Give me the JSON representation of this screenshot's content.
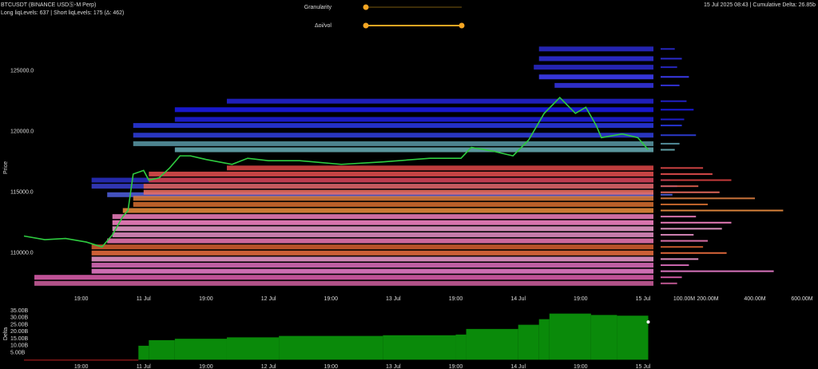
{
  "header": {
    "title": "BTCUSDT (BINANCE USDⓈ-M Perp)",
    "subtitle": "Long liqLevels: 637 | Short liqLevels: 175 (Δ: 462)",
    "status": "15 Jul 2025 08:43 | Cumulative Delta: 26.85b"
  },
  "controls": [
    {
      "label": "Granularity"
    },
    {
      "label": "Δoi/vol"
    }
  ],
  "chart_data": [
    {
      "type": "line",
      "y_label": "Price",
      "color": "#2ecc40",
      "x": [
        1,
        5,
        9,
        13,
        16,
        18,
        20,
        21,
        22,
        24,
        25,
        27,
        29,
        31,
        33,
        36,
        41,
        44,
        48,
        54,
        62,
        70,
        79,
        85,
        87,
        91,
        95,
        98,
        101,
        104,
        107,
        109,
        111,
        112,
        116,
        119,
        121
      ],
      "values": [
        111400,
        111100,
        111200,
        110900,
        110500,
        111500,
        113000,
        113500,
        116500,
        116800,
        116000,
        116200,
        117000,
        118000,
        118000,
        117700,
        117300,
        117800,
        117600,
        117600,
        117300,
        117500,
        117800,
        117800,
        118700,
        118400,
        118000,
        119300,
        121500,
        122800,
        121500,
        122000,
        120500,
        119500,
        119800,
        119500,
        118500
      ],
      "xlim": [
        1,
        122
      ],
      "xticks": [
        {
          "value": 12,
          "label": "19:00"
        },
        {
          "value": 24,
          "label": "11 Jul"
        },
        {
          "value": 36,
          "label": "19:00"
        },
        {
          "value": 48,
          "label": "12 Jul"
        },
        {
          "value": 60,
          "label": "19:00"
        },
        {
          "value": 72,
          "label": "13 Jul"
        },
        {
          "value": 84,
          "label": "19:00"
        },
        {
          "value": 96,
          "label": "14 Jul"
        },
        {
          "value": 108,
          "label": "19:00"
        },
        {
          "value": 120,
          "label": "15 Jul"
        }
      ],
      "ylim": [
        106500,
        128200
      ],
      "yticks": [
        {
          "value": 110000,
          "label": "110000.0"
        },
        {
          "value": 115000,
          "label": "115000.0"
        },
        {
          "value": 120000,
          "label": "120000.0"
        },
        {
          "value": 125000,
          "label": "125000.0"
        }
      ],
      "liq_levels": {
        "price": [
          126800,
          126000,
          125300,
          124500,
          123800,
          122500,
          121800,
          121000,
          120500,
          119700,
          119000,
          118500,
          116000,
          115500,
          114800,
          117000,
          116500,
          116000,
          115500,
          115000,
          114500,
          114000,
          113500,
          113000,
          112500,
          112000,
          111500,
          111000,
          110500,
          110000,
          109500,
          109000,
          108500,
          108000,
          107500
        ],
        "start": [
          100,
          100,
          99,
          100,
          103,
          40,
          30,
          30,
          22,
          22,
          22,
          30,
          14,
          14,
          17,
          40,
          25,
          25,
          24,
          24,
          22,
          22,
          20,
          18,
          18,
          18,
          18,
          17,
          14,
          14,
          14,
          14,
          14,
          3,
          3
        ],
        "color": [
          "#2a2ad0",
          "#3030e0",
          "#2a2ad0",
          "#4040ff",
          "#3535e8",
          "#2525d8",
          "#1c1cf0",
          "#2020e0",
          "#2a3ae8",
          "#3040e0",
          "#5a9aa8",
          "#6ab0b8",
          "#2a30c8",
          "#3a40d0",
          "#5060e0",
          "#e04848",
          "#e85050",
          "#d84040",
          "#e06050",
          "#f07060",
          "#e08040",
          "#d87030",
          "#f09040",
          "#f080c0",
          "#ff88cc",
          "#f0a0d0",
          "#e890c8",
          "#f07ab8",
          "#d86030",
          "#f07040",
          "#f09ad0",
          "#e070c0",
          "#f080d0",
          "#e060b0",
          "#d060a0"
        ]
      }
    },
    {
      "type": "hbar",
      "values": [
        60,
        90,
        70,
        120,
        80,
        110,
        140,
        100,
        90,
        150,
        80,
        60,
        40,
        70,
        50,
        180,
        220,
        300,
        160,
        250,
        400,
        200,
        520,
        150,
        300,
        260,
        140,
        200,
        180,
        280,
        160,
        120,
        480,
        90,
        70
      ],
      "xlim": [
        0,
        661
      ],
      "xticks": [
        {
          "value": 100,
          "label": "100.00M"
        },
        {
          "value": 200,
          "label": "200.00M"
        },
        {
          "value": 400,
          "label": "400.00M"
        },
        {
          "value": 600,
          "label": "600.00M"
        }
      ]
    },
    {
      "type": "step-area",
      "y_label": "Delta",
      "positive_color": "#0a8a0a",
      "negative_color": "#c02020",
      "x": [
        1,
        22,
        23,
        25,
        30,
        40,
        50,
        70,
        84,
        86,
        96,
        100,
        102,
        110,
        115,
        121
      ],
      "values": [
        -0.5,
        -0.5,
        10,
        14,
        15,
        16,
        17,
        17.5,
        18,
        22,
        25,
        29,
        33,
        32,
        31.5,
        27
      ],
      "xlim": [
        1,
        122
      ],
      "xticks": [
        {
          "value": 12,
          "label": "19:00"
        },
        {
          "value": 24,
          "label": "11 Jul"
        },
        {
          "value": 36,
          "label": "19:00"
        },
        {
          "value": 48,
          "label": "12 Jul"
        },
        {
          "value": 60,
          "label": "19:00"
        },
        {
          "value": 72,
          "label": "13 Jul"
        },
        {
          "value": 84,
          "label": "19:00"
        },
        {
          "value": 96,
          "label": "14 Jul"
        },
        {
          "value": 108,
          "label": "19:00"
        },
        {
          "value": 120,
          "label": "15 Jul"
        }
      ],
      "ylim": [
        -1.5,
        38.5
      ],
      "yticks": [
        {
          "value": 5,
          "label": "5.00B"
        },
        {
          "value": 10,
          "label": "10.00B"
        },
        {
          "value": 15,
          "label": "15.00B"
        },
        {
          "value": 20,
          "label": "20.00B"
        },
        {
          "value": 25,
          "label": "25.00B"
        },
        {
          "value": 30,
          "label": "30.00B"
        },
        {
          "value": 35,
          "label": "35.00B"
        }
      ]
    }
  ]
}
